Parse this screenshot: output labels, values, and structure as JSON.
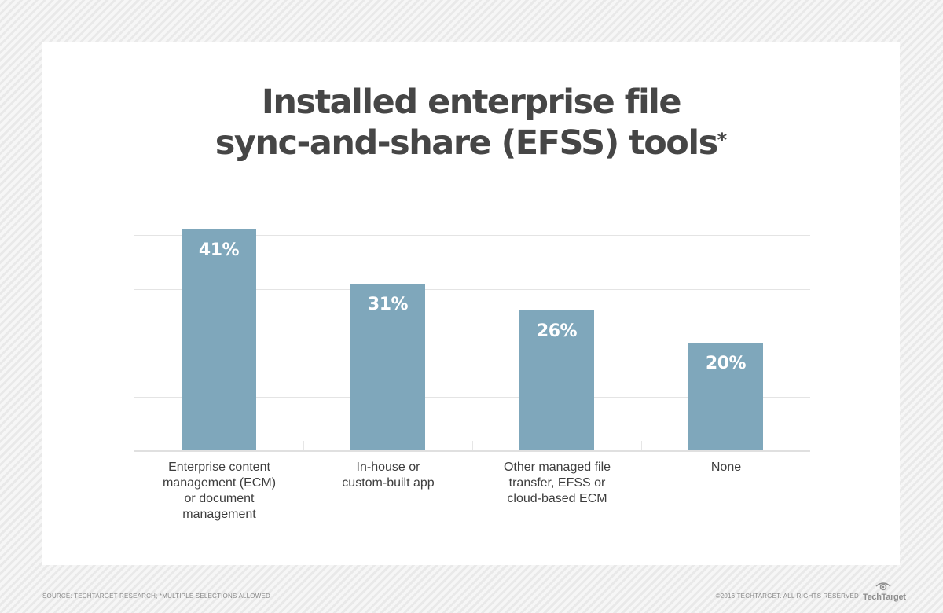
{
  "title": {
    "line1": "Installed enterprise file",
    "line2": "sync-and-share (EFSS) tools",
    "asterisk": "*"
  },
  "bars": [
    {
      "label": "Enterprise content\nmanagement (ECM)\nor document\nmanagement",
      "value": 41,
      "value_label": "41%"
    },
    {
      "label": "In-house or\ncustom-built app",
      "value": 31,
      "value_label": "31%"
    },
    {
      "label": "Other managed file\ntransfer, EFSS or\ncloud-based ECM",
      "value": 26,
      "value_label": "26%"
    },
    {
      "label": "None",
      "value": 20,
      "value_label": "20%"
    }
  ],
  "footer": {
    "source": "SOURCE: TECHTARGET RESEARCH; *MULTIPLE SELECTIONS ALLOWED",
    "copyright": "©2016 TECHTARGET. ALL RIGHTS RESERVED",
    "logo_text": "TechTarget"
  },
  "colors": {
    "bar": "#7fa7bb",
    "title": "#464646",
    "gridline": "#e4e4e4"
  },
  "chart_data": {
    "type": "bar",
    "title": "Installed enterprise file sync-and-share (EFSS) tools*",
    "categories": [
      "Enterprise content management (ECM) or document management",
      "In-house or custom-built app",
      "Other managed file transfer, EFSS or cloud-based ECM",
      "None"
    ],
    "values": [
      41,
      31,
      26,
      20
    ],
    "value_labels": [
      "41%",
      "31%",
      "26%",
      "20%"
    ],
    "xlabel": "",
    "ylabel": "",
    "ylim": [
      0,
      40
    ],
    "gridlines": [
      10,
      20,
      30,
      40
    ],
    "grid": true,
    "legend": null,
    "annotations": [
      "*Multiple selections allowed"
    ],
    "source": "TechTarget Research"
  }
}
